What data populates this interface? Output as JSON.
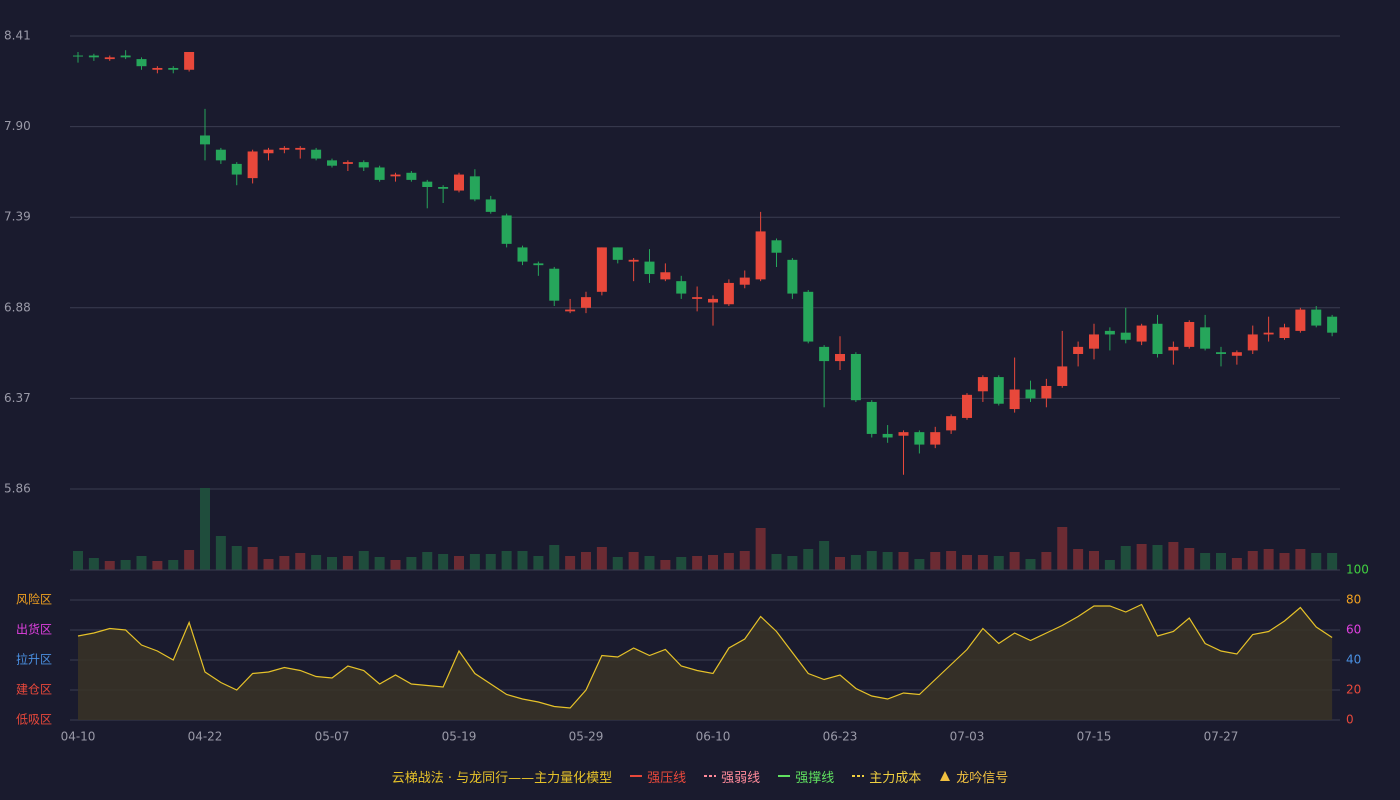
{
  "chart_data": [
    {
      "type": "candlestick",
      "up_color": "#e8483b",
      "down_color": "#26a65b",
      "ylim": [
        5.86,
        8.41
      ],
      "yticks": [
        8.41,
        {
          "value": 7.9,
          "label": "7.90"
        },
        7.39,
        6.88,
        6.37,
        5.86
      ],
      "open": [
        8.3,
        8.3,
        8.28,
        8.3,
        8.28,
        8.22,
        8.23,
        8.22,
        7.85,
        7.77,
        7.69,
        7.61,
        7.75,
        7.77,
        7.77,
        7.77,
        7.71,
        7.69,
        7.7,
        7.67,
        7.62,
        7.64,
        7.59,
        7.56,
        7.54,
        7.62,
        7.49,
        7.4,
        7.22,
        7.13,
        7.1,
        6.86,
        6.88,
        6.97,
        7.22,
        7.14,
        7.14,
        7.04,
        7.03,
        6.93,
        6.91,
        6.9,
        7.01,
        7.04,
        7.26,
        7.15,
        6.97,
        6.66,
        6.58,
        6.62,
        6.35,
        6.17,
        6.16,
        6.18,
        6.11,
        6.19,
        6.26,
        6.41,
        6.49,
        6.31,
        6.42,
        6.37,
        6.44,
        6.62,
        6.65,
        6.75,
        6.74,
        6.69,
        6.79,
        6.64,
        6.66,
        6.77,
        6.63,
        6.61,
        6.64,
        6.73,
        6.71,
        6.75,
        6.87,
        6.83
      ],
      "high": [
        8.32,
        8.31,
        8.3,
        8.33,
        8.29,
        8.24,
        8.24,
        8.32,
        8.0,
        7.78,
        7.7,
        7.77,
        7.78,
        7.79,
        7.79,
        7.78,
        7.72,
        7.71,
        7.71,
        7.68,
        7.64,
        7.65,
        7.6,
        7.57,
        7.64,
        7.66,
        7.51,
        7.41,
        7.23,
        7.14,
        7.11,
        6.93,
        6.97,
        7.22,
        7.22,
        7.16,
        7.21,
        7.13,
        7.06,
        7.0,
        6.95,
        7.04,
        7.09,
        7.42,
        7.27,
        7.16,
        6.98,
        6.67,
        6.72,
        6.63,
        6.36,
        6.22,
        6.19,
        6.19,
        6.21,
        6.28,
        6.4,
        6.5,
        6.5,
        6.6,
        6.47,
        6.48,
        6.75,
        6.69,
        6.79,
        6.77,
        6.88,
        6.79,
        6.84,
        6.69,
        6.81,
        6.84,
        6.66,
        6.64,
        6.78,
        6.83,
        6.79,
        6.88,
        6.89,
        6.84
      ],
      "low": [
        8.26,
        8.27,
        8.27,
        8.28,
        8.22,
        8.2,
        8.2,
        8.21,
        7.71,
        7.69,
        7.57,
        7.58,
        7.71,
        7.75,
        7.72,
        7.71,
        7.67,
        7.65,
        7.65,
        7.59,
        7.59,
        7.59,
        7.44,
        7.47,
        7.53,
        7.48,
        7.41,
        7.22,
        7.12,
        7.06,
        6.89,
        6.85,
        6.85,
        6.95,
        7.13,
        7.03,
        7.02,
        7.03,
        6.93,
        6.86,
        6.78,
        6.89,
        6.99,
        7.03,
        7.11,
        6.93,
        6.68,
        6.32,
        6.53,
        6.35,
        6.15,
        6.12,
        5.94,
        6.06,
        6.09,
        6.17,
        6.25,
        6.35,
        6.33,
        6.29,
        6.35,
        6.32,
        6.43,
        6.55,
        6.59,
        6.64,
        6.68,
        6.67,
        6.6,
        6.56,
        6.65,
        6.64,
        6.55,
        6.56,
        6.62,
        6.69,
        6.7,
        6.74,
        6.77,
        6.72
      ],
      "close": [
        8.3,
        8.29,
        8.29,
        8.29,
        8.24,
        8.23,
        8.22,
        8.32,
        7.8,
        7.71,
        7.63,
        7.76,
        7.77,
        7.78,
        7.78,
        7.72,
        7.68,
        7.7,
        7.67,
        7.6,
        7.63,
        7.6,
        7.56,
        7.55,
        7.63,
        7.49,
        7.42,
        7.24,
        7.14,
        7.12,
        6.92,
        6.87,
        6.94,
        7.22,
        7.15,
        7.15,
        7.07,
        7.08,
        6.96,
        6.94,
        6.93,
        7.02,
        7.05,
        7.31,
        7.19,
        6.96,
        6.69,
        6.58,
        6.62,
        6.36,
        6.17,
        6.15,
        6.18,
        6.11,
        6.18,
        6.27,
        6.39,
        6.49,
        6.34,
        6.42,
        6.37,
        6.44,
        6.55,
        6.66,
        6.73,
        6.73,
        6.7,
        6.78,
        6.62,
        6.66,
        6.8,
        6.65,
        6.62,
        6.63,
        6.73,
        6.74,
        6.77,
        6.87,
        6.78,
        6.74
      ]
    },
    {
      "type": "bar",
      "up_color": "#6b2b33",
      "down_color": "#1f4d3c",
      "values": [
        19,
        12,
        9,
        10,
        14,
        9,
        10,
        20,
        82,
        34,
        24,
        23,
        11,
        14,
        17,
        15,
        13,
        14,
        19,
        13,
        10,
        13,
        18,
        16,
        14,
        16,
        16,
        19,
        19,
        14,
        25,
        14,
        18,
        23,
        13,
        18,
        14,
        10,
        13,
        14,
        15,
        17,
        19,
        42,
        16,
        14,
        21,
        29,
        13,
        15,
        19,
        18,
        18,
        11,
        18,
        19,
        15,
        15,
        14,
        18,
        11,
        18,
        43,
        21,
        19,
        10,
        24,
        26,
        25,
        28,
        22,
        17,
        17,
        12,
        19,
        21,
        17,
        21,
        17,
        17
      ]
    },
    {
      "type": "line",
      "color": "#e6c229",
      "fill": "#3a3226",
      "categories": [
        "04-10",
        null,
        null,
        null,
        null,
        null,
        null,
        null,
        "04-22",
        null,
        null,
        null,
        null,
        null,
        null,
        null,
        "05-07",
        null,
        null,
        null,
        null,
        null,
        null,
        null,
        "05-19",
        null,
        null,
        null,
        null,
        null,
        null,
        null,
        "05-29",
        null,
        null,
        null,
        null,
        null,
        null,
        null,
        "06-10",
        null,
        null,
        null,
        null,
        null,
        null,
        null,
        "06-23",
        null,
        null,
        null,
        null,
        null,
        null,
        null,
        "07-03",
        null,
        null,
        null,
        null,
        null,
        null,
        null,
        "07-15",
        null,
        null,
        null,
        null,
        null,
        null,
        null,
        "07-27",
        null,
        null,
        null,
        null,
        null,
        null,
        null
      ],
      "values": [
        56,
        58,
        61,
        60,
        50,
        46,
        40,
        65,
        32,
        25,
        20,
        31,
        32,
        35,
        33,
        29,
        28,
        36,
        33,
        24,
        30,
        24,
        23,
        22,
        46,
        31,
        24,
        17,
        14,
        12,
        9,
        8,
        20,
        43,
        42,
        48,
        43,
        47,
        36,
        33,
        31,
        48,
        54,
        69,
        59,
        45,
        31,
        27,
        30,
        21,
        16,
        14,
        18,
        17,
        27,
        37,
        47,
        61,
        51,
        58,
        53,
        58,
        63,
        69,
        76,
        76,
        72,
        77,
        56,
        59,
        68,
        51,
        46,
        44,
        57,
        59,
        66,
        75,
        62,
        55
      ],
      "ylim": [
        0,
        100
      ],
      "yticks": [
        {
          "value": 80,
          "label": "风险区"
        },
        {
          "value": 60,
          "label": "出货区"
        },
        {
          "value": 40,
          "label": "拉升区"
        },
        {
          "value": 20,
          "label": "建仓区"
        },
        {
          "value": 0,
          "label": "低吸区"
        }
      ],
      "ytick_colors": [
        "#f0a020",
        "#e040e0",
        "#4a90e2",
        "#e8483b",
        "#e8483b"
      ],
      "y2ticks": [
        100,
        80,
        60,
        40,
        20,
        0
      ],
      "y2tick_colors": [
        "#40d040",
        "#f0a020",
        "#e040e0",
        "#4a90e2",
        "#e8483b",
        "#e8483b"
      ]
    }
  ],
  "legend": {
    "title": "云梯战法 · 与龙同行——主力量化模型",
    "title_color": "#e6c229",
    "items": [
      {
        "name": "强压线",
        "color": "#e8483b",
        "style": "solid"
      },
      {
        "name": "强弱线",
        "color": "#ff8a9a",
        "style": "dashed"
      },
      {
        "name": "强撑线",
        "color": "#60e060",
        "style": "solid"
      },
      {
        "name": "主力成本",
        "color": "#f0d040",
        "style": "dashed"
      },
      {
        "name": "龙吟信号",
        "color": "#f0c040",
        "style": "triangle"
      }
    ]
  }
}
